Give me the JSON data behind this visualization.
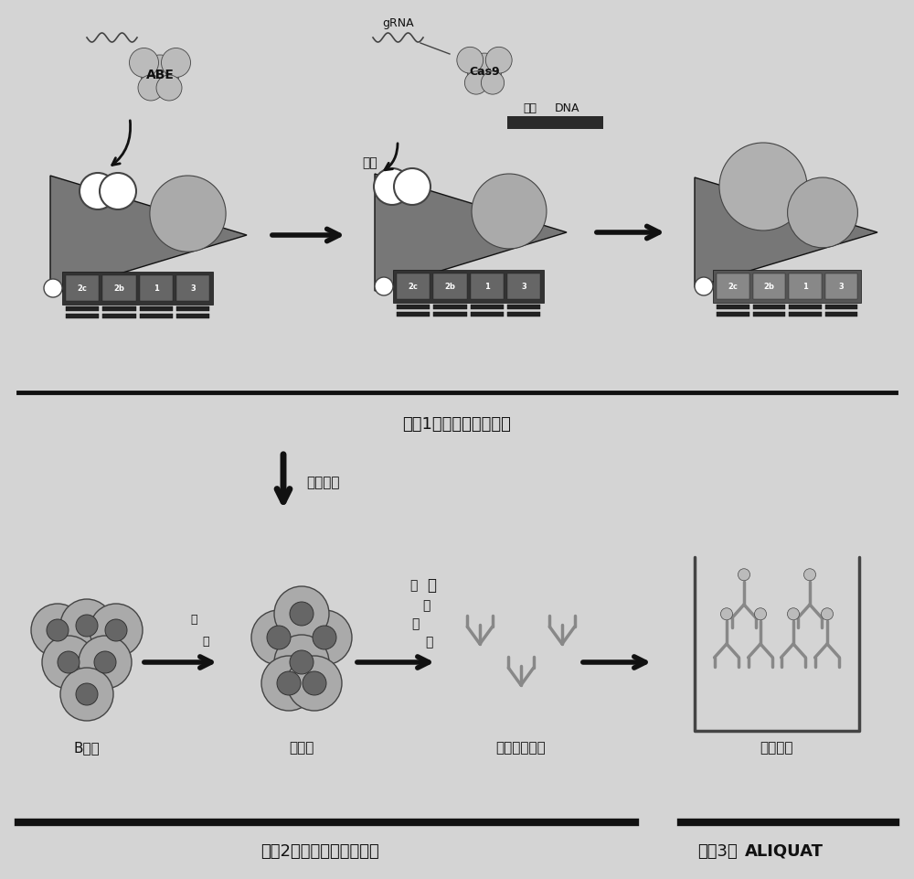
{
  "bg_color": "#d4d4d4",
  "black": "#111111",
  "dark_gray": "#444444",
  "mid_gray": "#888888",
  "light_gray": "#bbbbbb",
  "white": "#ffffff",
  "stage1_label": "阶段1：小鼠基因组工程",
  "stage2_label": "阶段2：无糖基化抗体产生",
  "stage3_label": "阶段3：",
  "stage3_bold": "ALIQUAT",
  "vaccination_label": "免疫接种",
  "bcell_label": "B细胞",
  "hybridoma_label": "杂交瘤",
  "antibody_label": "无糖基化抗体",
  "assay_label": "免疫测定",
  "abe_label": "ABE",
  "zygote_label": "合子",
  "grna_label": "gRNA",
  "cas9_label": "Cas9",
  "donor_label": "供体",
  "dna_label": "DNA",
  "fusion_label": "融",
  "fusion_label2": "合",
  "culture_line1": "培",
  "culture_line2": "养",
  "culture_line3": "、",
  "culture_line4": "纯",
  "culture_line5": "化",
  "chr_labels": [
    "2c",
    "2b",
    "1",
    "3"
  ],
  "font_size_main": 13,
  "font_size_label": 11,
  "font_size_small": 9,
  "font_size_tiny": 7
}
